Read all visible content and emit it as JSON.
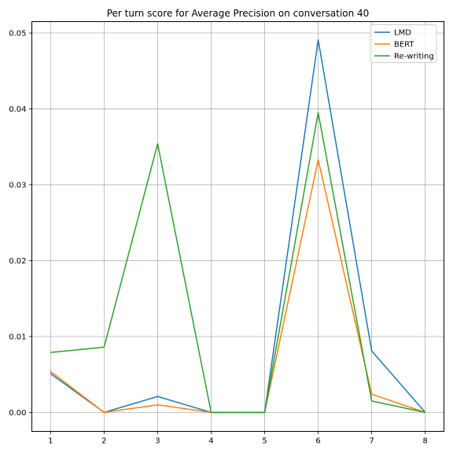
{
  "chart_data": {
    "type": "line",
    "title": "Per turn score for Average Precision on conversation 40",
    "xlabel": "",
    "ylabel": "",
    "x": [
      1,
      2,
      3,
      4,
      5,
      6,
      7,
      8
    ],
    "xticks": [
      "1",
      "2",
      "3",
      "4",
      "5",
      "6",
      "7",
      "8"
    ],
    "xlim": [
      0.65,
      8.35
    ],
    "ylim": [
      -0.0025,
      0.0515
    ],
    "yticks": [
      "0.00",
      "0.01",
      "0.02",
      "0.03",
      "0.04",
      "0.05"
    ],
    "grid": true,
    "legend_position": "top-right",
    "series": [
      {
        "name": "LMD",
        "color": "#1f77b4",
        "values": [
          0.0051,
          0.0,
          0.0021,
          0.0,
          0.0,
          0.0491,
          0.0081,
          0.0
        ]
      },
      {
        "name": "BERT",
        "color": "#ff7f0e",
        "values": [
          0.0054,
          0.0,
          0.001,
          0.0,
          0.0,
          0.0333,
          0.0024,
          0.0
        ]
      },
      {
        "name": "Re-writing",
        "color": "#2ca02c",
        "values": [
          0.0079,
          0.0086,
          0.0354,
          0.0,
          0.0,
          0.0395,
          0.0015,
          0.0
        ]
      }
    ]
  }
}
